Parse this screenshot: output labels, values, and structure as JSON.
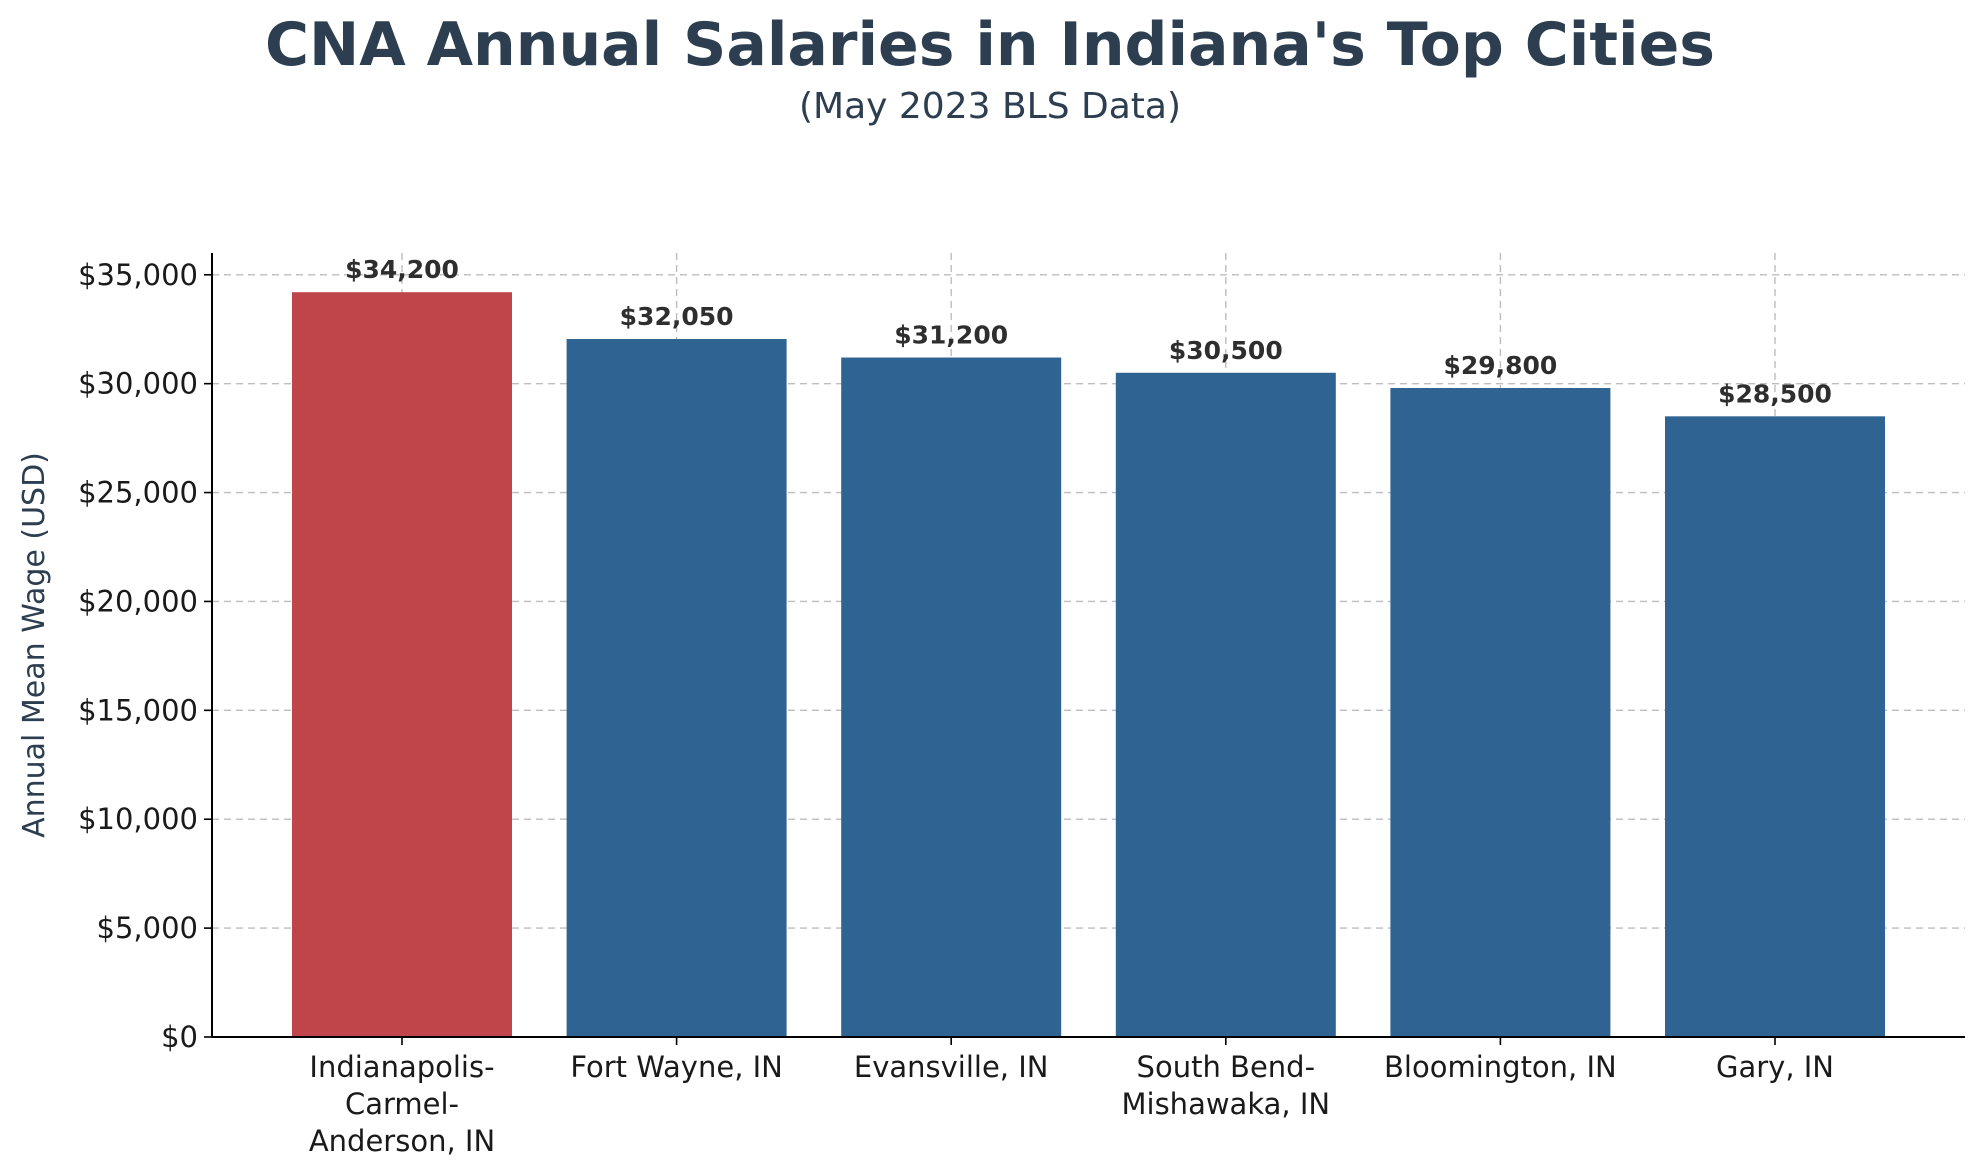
{
  "chart_data": {
    "type": "bar",
    "title": "CNA Annual Salaries in Indiana's Top Cities",
    "subtitle": "(May 2023 BLS Data)",
    "xlabel": "",
    "ylabel": "Annual Mean Wage (USD)",
    "ylim": [
      0,
      36000
    ],
    "yticks": [
      0,
      5000,
      10000,
      15000,
      20000,
      25000,
      30000,
      35000
    ],
    "ytick_labels": [
      "$0",
      "$5,000",
      "$10,000",
      "$15,000",
      "$20,000",
      "$25,000",
      "$30,000",
      "$35,000"
    ],
    "categories": [
      "Indianapolis-Carmel-Anderson, IN",
      "Fort Wayne, IN",
      "Evansville, IN",
      "South Bend-Mishawaka, IN",
      "Bloomington, IN",
      "Gary, IN"
    ],
    "category_label_lines": [
      [
        "Indianapolis-",
        "Carmel-",
        "Anderson, IN"
      ],
      [
        "Fort Wayne, IN"
      ],
      [
        "Evansville, IN"
      ],
      [
        "South Bend-",
        "Mishawaka, IN"
      ],
      [
        "Bloomington, IN"
      ],
      [
        "Gary, IN"
      ]
    ],
    "values": [
      34200,
      32050,
      31200,
      30500,
      29800,
      28500
    ],
    "value_labels": [
      "$34,200",
      "$32,050",
      "$31,200",
      "$30,500",
      "$29,800",
      "$28,500"
    ],
    "bar_colors": [
      "#c0454a",
      "#2f6391",
      "#2f6391",
      "#2f6391",
      "#2f6391",
      "#2f6391"
    ],
    "grid": true,
    "legend": "none"
  }
}
